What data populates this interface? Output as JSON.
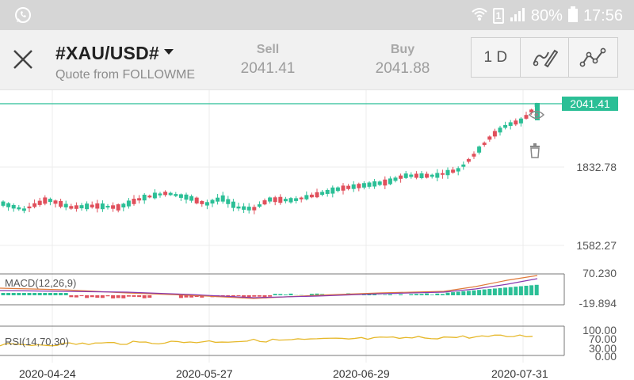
{
  "status_bar": {
    "battery_percent": "80%",
    "time": "17:56",
    "sim_slot": "1"
  },
  "header": {
    "symbol": "#XAU/USD#",
    "subtitle": "Quote from FOLLOWME",
    "sell_label": "Sell",
    "sell_value": "2041.41",
    "buy_label": "Buy",
    "buy_value": "2041.88",
    "timeframe": "1 D"
  },
  "chart": {
    "last_price_tag": "2041.41",
    "price_axis": [
      "1832.78",
      "1582.27"
    ],
    "macd": {
      "label": "MACD(12,26,9)",
      "max": "70.230",
      "min": "-19.894"
    },
    "rsi": {
      "label": "RSI(14,70,30)",
      "levels": [
        "100.00",
        "70.00",
        "30.00",
        "0.00"
      ]
    },
    "dates": [
      "2020-04-24",
      "2020-05-27",
      "2020-06-29",
      "2020-07-31"
    ],
    "colors": {
      "up": "#2bbf96",
      "down": "#e0505c",
      "grid": "#e6e6e6",
      "price_line": "#2bbf96"
    }
  }
}
